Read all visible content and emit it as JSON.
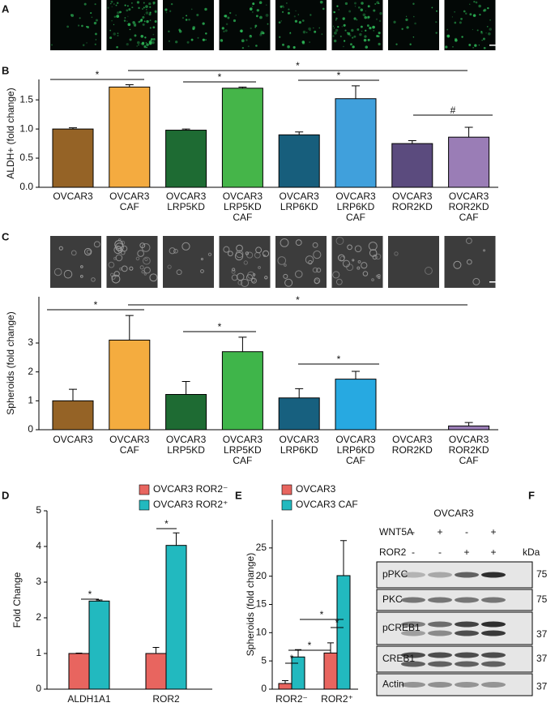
{
  "image_panel": "A",
  "chart_data": [
    {
      "type": "bar",
      "panel": "B",
      "ylabel": "ALDH+ (fold change)",
      "categories": [
        "OVCAR3",
        "OVCAR3 CAF",
        "OVCAR3 LRP5KD",
        "OVCAR3 LRP5KD CAF",
        "OVCAR3 LRP6KD",
        "OVCAR3 LRP6KD CAF",
        "OVCAR3 ROR2KD",
        "OVCAR3 ROR2KD CAF"
      ],
      "values": [
        1.0,
        1.72,
        0.98,
        1.7,
        0.9,
        1.52,
        0.75,
        0.86
      ],
      "errors": [
        0.02,
        0.04,
        0.02,
        0.02,
        0.05,
        0.22,
        0.05,
        0.17
      ],
      "colors": [
        "#956326",
        "#f4ab40",
        "#1e6b33",
        "#45b549",
        "#175e7c",
        "#40a0dc",
        "#5b4b7e",
        "#9a7db6"
      ],
      "ylim": [
        0,
        1.85
      ],
      "yticks": [
        {
          "value": 0,
          "label": "0.0"
        },
        0.5,
        {
          "value": 1,
          "label": "1.0"
        },
        1.5
      ],
      "annotations": [
        "*",
        "*",
        "*",
        "*",
        "#"
      ]
    },
    {
      "type": "bar",
      "panel": "C",
      "ylabel": "Spheroids (fold change)",
      "categories": [
        "OVCAR3",
        "OVCAR3 CAF",
        "OVCAR3 LRP5KD",
        "OVCAR3 LRP5KD CAF",
        "OVCAR3 LRP6KD",
        "OVCAR3 LRP6KD CAF",
        "OVCAR3 ROR2KD",
        "OVCAR3 ROR2KD CAF"
      ],
      "values": [
        1.0,
        3.1,
        1.22,
        2.7,
        1.1,
        1.75,
        0,
        0.13
      ],
      "errors": [
        0.4,
        0.85,
        0.45,
        0.5,
        0.32,
        0.27,
        null,
        0.12
      ],
      "colors": [
        "#956326",
        "#f4ac3f",
        "#1e6b33",
        "#3fb54a",
        "#17607f",
        "#27a9e1",
        "#5b4b7e",
        "#9a7db6"
      ],
      "ylim": [
        0,
        4.6
      ],
      "yticks": [
        0,
        1,
        2,
        3
      ],
      "annotations": [
        "*",
        "*",
        "*",
        "*"
      ]
    },
    {
      "type": "grouped_bar",
      "panel": "D",
      "ylabel": "Fold Change",
      "categories": [
        "ALDH1A1",
        "ROR2"
      ],
      "series": [
        {
          "name": "OVCAR3 ROR2⁻",
          "color": "#e8655f",
          "values": [
            1.0,
            1.0
          ],
          "errors": [
            0.01,
            0.17
          ]
        },
        {
          "name": "OVCAR3 ROR2⁺",
          "color": "#22b9bf",
          "values": [
            2.47,
            4.03
          ],
          "errors": [
            0.03,
            0.35
          ]
        }
      ],
      "ylim": [
        0,
        5
      ],
      "yticks": [
        0,
        1,
        2,
        3,
        4,
        5
      ],
      "annotations": [
        "*",
        "*"
      ]
    },
    {
      "type": "grouped_bar",
      "panel": "E",
      "ylabel": "Spheroids (fold change)",
      "categories": [
        "ROR2⁻",
        "ROR2⁺"
      ],
      "series": [
        {
          "name": "OVCAR3",
          "color": "#e8655f",
          "values": [
            1.0,
            6.4
          ],
          "errors": [
            0.5,
            1.8
          ]
        },
        {
          "name": "OVCAR3 CAF",
          "color": "#22b9bf",
          "values": [
            5.7,
            20.1
          ],
          "errors": [
            1.3,
            6.2
          ]
        }
      ],
      "ylim": [
        0,
        30
      ],
      "yticks": [
        0,
        5,
        10,
        15,
        20,
        25
      ],
      "annotations": [
        "*",
        "*",
        "*",
        "*"
      ]
    }
  ],
  "blot": {
    "panel": "F",
    "title": "OVCAR3",
    "treatments": [
      {
        "name": "WNT5A",
        "lanes": [
          "-",
          "+",
          "-",
          "+"
        ]
      },
      {
        "name": "ROR2",
        "lanes": [
          "-",
          "-",
          "+",
          "+"
        ]
      }
    ],
    "unit": "kDa",
    "rows": [
      {
        "name": "pPKC",
        "marker": 75
      },
      {
        "name": "PKC",
        "marker": 75
      },
      {
        "name": "pCREB1",
        "marker": 37
      },
      {
        "name": "CREB1",
        "marker": 37
      },
      {
        "name": "Actin",
        "marker": 37
      }
    ]
  }
}
